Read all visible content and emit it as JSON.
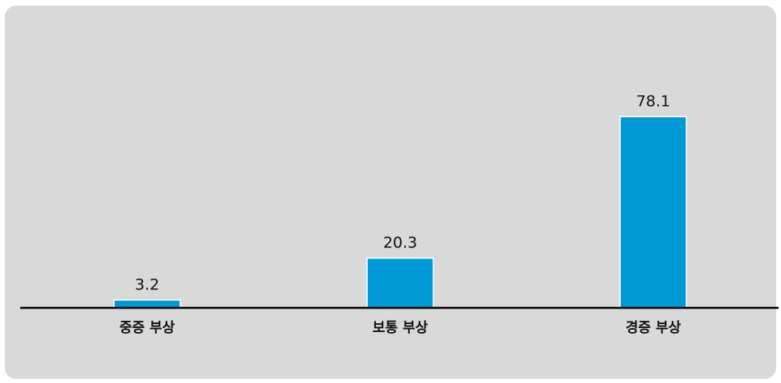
{
  "chart_data": {
    "type": "bar",
    "title": "",
    "xlabel": "",
    "ylabel": "",
    "categories": [
      "중증 부상",
      "보통 부상",
      "경증 부상"
    ],
    "values": [
      3.2,
      20.3,
      78.1
    ],
    "value_labels": [
      "3.2",
      "20.3",
      "78.1"
    ],
    "ylim": [
      0,
      100
    ],
    "grid": false,
    "legend": "none",
    "colors": {
      "bar": "#0099d8",
      "background": "#d9d9d9",
      "axis": "#000000"
    }
  }
}
